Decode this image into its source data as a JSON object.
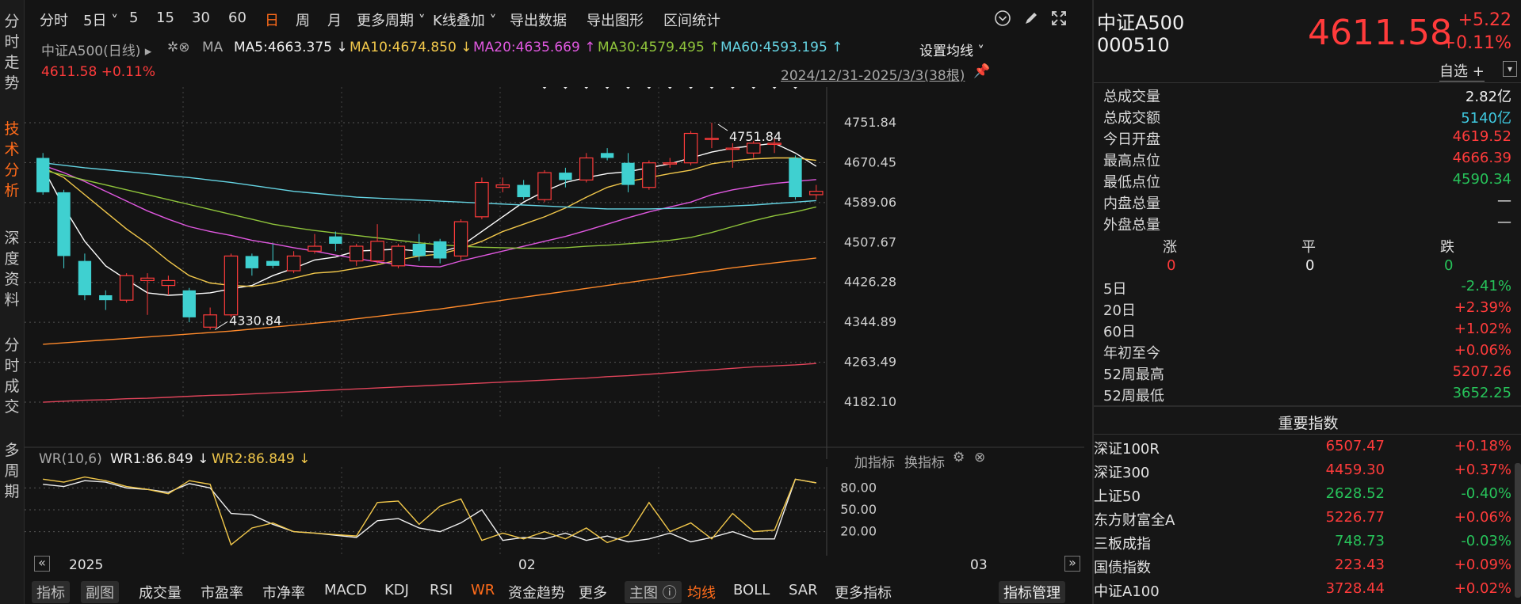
{
  "left_tabs": [
    "分时走势",
    "技术分析",
    "深度资料",
    "分时成交",
    "多周期"
  ],
  "active_tab_index": 1,
  "toolbar": {
    "items": [
      "分时",
      "5日",
      "5",
      "15",
      "30",
      "60",
      "日",
      "周",
      "月",
      "更多周期",
      "K线叠加",
      "导出数据",
      "导出图形",
      "区间统计"
    ],
    "active_item": "日",
    "icons": [
      "chevron-circle-icon",
      "pen-icon",
      "fullscreen-icon"
    ]
  },
  "ma_line": {
    "name": "中证A500",
    "period": "(日线)",
    "ma_label": "MA",
    "ma5": "MA5:4663.375",
    "ma10": "MA10:4674.850",
    "ma20": "MA20:4635.669",
    "ma30": "MA30:4579.495",
    "ma60": "MA60:4593.195",
    "arrow_down": "↓",
    "arrow_up": "↑",
    "settings": "设置均线",
    "price": "4611.58",
    "change_pct": "+0.11%",
    "date_range": "2024/12/31-2025/3/3(38根)"
  },
  "chart_data": {
    "type": "candlestick",
    "y_ticks": [
      "4751.84",
      "4670.45",
      "4589.06",
      "4507.67",
      "4426.28",
      "4344.89",
      "4263.49",
      "4182.10"
    ],
    "y_range": [
      4182.1,
      4751.84
    ],
    "x_labels": [
      "2025",
      "02",
      "03"
    ],
    "high_annotation": "4751.84",
    "low_annotation": "4330.84",
    "candles": [
      [
        4680,
        4610,
        4690,
        4605
      ],
      [
        4610,
        4480,
        4615,
        4455
      ],
      [
        4470,
        4400,
        4485,
        4390
      ],
      [
        4400,
        4390,
        4410,
        4370
      ],
      [
        4390,
        4440,
        4445,
        4385
      ],
      [
        4430,
        4435,
        4445,
        4360
      ],
      [
        4420,
        4430,
        4440,
        4400
      ],
      [
        4410,
        4355,
        4415,
        4345
      ],
      [
        4335,
        4360,
        4375,
        4330
      ],
      [
        4360,
        4480,
        4485,
        4355
      ],
      [
        4480,
        4455,
        4485,
        4440
      ],
      [
        4470,
        4460,
        4505,
        4455
      ],
      [
        4450,
        4480,
        4490,
        4445
      ],
      [
        4490,
        4500,
        4525,
        4485
      ],
      [
        4520,
        4505,
        4530,
        4490
      ],
      [
        4470,
        4500,
        4505,
        4460
      ],
      [
        4470,
        4510,
        4545,
        4465
      ],
      [
        4460,
        4500,
        4505,
        4455
      ],
      [
        4505,
        4480,
        4525,
        4470
      ],
      [
        4510,
        4475,
        4515,
        4465
      ],
      [
        4480,
        4550,
        4555,
        4470
      ],
      [
        4560,
        4630,
        4640,
        4555
      ],
      [
        4620,
        4625,
        4640,
        4610
      ],
      [
        4625,
        4600,
        4635,
        4595
      ],
      [
        4595,
        4650,
        4655,
        4590
      ],
      [
        4650,
        4635,
        4660,
        4620
      ],
      [
        4635,
        4680,
        4690,
        4630
      ],
      [
        4690,
        4680,
        4700,
        4675
      ],
      [
        4670,
        4625,
        4690,
        4610
      ],
      [
        4620,
        4670,
        4675,
        4615
      ],
      [
        4670,
        4670,
        4680,
        4660
      ],
      [
        4670,
        4730,
        4735,
        4665
      ],
      [
        4720,
        4720,
        4751.84,
        4700
      ],
      [
        4700,
        4700,
        4710,
        4660
      ],
      [
        4690,
        4710,
        4715,
        4680
      ],
      [
        4710,
        4710,
        4720,
        4690
      ],
      [
        4680,
        4600,
        4685,
        4595
      ],
      [
        4605,
        4612,
        4625,
        4595
      ]
    ],
    "ma_series": [
      {
        "name": "MA5",
        "color": "#ffffff",
        "values": [
          4660,
          4580,
          4510,
          4460,
          4432,
          4405,
          4400,
          4402,
          4405,
          4413,
          4420,
          4440,
          4455,
          4472,
          4478,
          4490,
          4492,
          4494,
          4490,
          4488,
          4500,
          4530,
          4560,
          4590,
          4612,
          4630,
          4640,
          4648,
          4652,
          4660,
          4668,
          4680,
          4692,
          4700,
          4705,
          4710,
          4690,
          4663
        ]
      },
      {
        "name": "MA10",
        "color": "#f2c84b",
        "values": [
          4660,
          4640,
          4605,
          4570,
          4535,
          4505,
          4470,
          4440,
          4425,
          4420,
          4418,
          4425,
          4435,
          4445,
          4448,
          4455,
          4462,
          4472,
          4480,
          4484,
          4495,
          4510,
          4530,
          4545,
          4560,
          4578,
          4600,
          4620,
          4632,
          4640,
          4648,
          4655,
          4668,
          4674,
          4678,
          4680,
          4680,
          4675
        ]
      },
      {
        "name": "MA20",
        "color": "#e058e0",
        "values": [
          4665,
          4650,
          4632,
          4612,
          4592,
          4572,
          4555,
          4540,
          4530,
          4522,
          4512,
          4505,
          4497,
          4490,
          4482,
          4475,
          4468,
          4463,
          4459,
          4458,
          4470,
          4480,
          4490,
          4500,
          4510,
          4520,
          4532,
          4545,
          4558,
          4570,
          4580,
          4590,
          4605,
          4615,
          4622,
          4628,
          4632,
          4636
        ]
      },
      {
        "name": "MA30",
        "color": "#8fc43b",
        "values": [
          4655,
          4645,
          4635,
          4625,
          4615,
          4605,
          4595,
          4585,
          4575,
          4565,
          4555,
          4545,
          4538,
          4532,
          4527,
          4522,
          4517,
          4512,
          4507,
          4503,
          4500,
          4498,
          4497,
          4496,
          4496,
          4497,
          4500,
          4502,
          4505,
          4508,
          4512,
          4518,
          4528,
          4540,
          4552,
          4562,
          4570,
          4580
        ]
      },
      {
        "name": "MA60",
        "color": "#65d4e3",
        "values": [
          4670,
          4665,
          4660,
          4656,
          4652,
          4648,
          4644,
          4640,
          4635,
          4630,
          4624,
          4618,
          4612,
          4608,
          4604,
          4600,
          4598,
          4596,
          4594,
          4592,
          4590,
          4588,
          4586,
          4584,
          4582,
          4580,
          4578,
          4576,
          4576,
          4576,
          4577,
          4578,
          4580,
          4582,
          4584,
          4587,
          4590,
          4593
        ]
      },
      {
        "name": "MA120",
        "color": "#ff8a2b",
        "values": [
          4300,
          4303,
          4306,
          4309,
          4312,
          4315,
          4318,
          4321,
          4324,
          4327,
          4331,
          4335,
          4339,
          4343,
          4347,
          4352,
          4357,
          4362,
          4367,
          4372,
          4378,
          4384,
          4390,
          4396,
          4402,
          4408,
          4414,
          4420,
          4426,
          4432,
          4438,
          4444,
          4450,
          4456,
          4461,
          4466,
          4471,
          4476
        ]
      },
      {
        "name": "MA250",
        "color": "#e0445a",
        "values": [
          4182,
          4184,
          4186,
          4187,
          4189,
          4190,
          4192,
          4194,
          4196,
          4197,
          4199,
          4201,
          4203,
          4205,
          4207,
          4209,
          4211,
          4213,
          4215,
          4217,
          4219,
          4221,
          4223,
          4225,
          4227,
          4229,
          4231,
          4234,
          4236,
          4239,
          4242,
          4245,
          4248,
          4251,
          4254,
          4256,
          4258,
          4261
        ]
      }
    ]
  },
  "wr": {
    "label": "WR(10,6)",
    "wr1": "WR1:86.849",
    "wr2": "WR2:86.849",
    "arrow": "↓",
    "add_indicator": "加指标",
    "change_indicator": "换指标",
    "y_ticks": [
      "80.00",
      "50.00",
      "20.00"
    ],
    "wr1_values": [
      85,
      82,
      90,
      88,
      80,
      78,
      74,
      86,
      80,
      45,
      43,
      30,
      20,
      18,
      15,
      12,
      35,
      38,
      25,
      20,
      32,
      50,
      8,
      12,
      10,
      18,
      8,
      14,
      6,
      10,
      18,
      6,
      12,
      20,
      10,
      10,
      92,
      87
    ],
    "wr2_values": [
      92,
      88,
      95,
      90,
      82,
      78,
      72,
      90,
      85,
      2,
      25,
      32,
      20,
      18,
      16,
      14,
      60,
      62,
      30,
      55,
      65,
      8,
      18,
      10,
      20,
      10,
      25,
      5,
      15,
      60,
      20,
      32,
      10,
      45,
      20,
      22,
      92,
      87
    ]
  },
  "bottom_bar": {
    "items": [
      "指标",
      "副图",
      "成交量",
      "市盈率",
      "市净率",
      "MACD",
      "KDJ",
      "RSI",
      "WR",
      "资金趋势",
      "更多",
      "主图",
      "均线",
      "BOLL",
      "SAR",
      "更多指标",
      "指标管理"
    ],
    "active_items": [
      "WR",
      "均线"
    ]
  },
  "quote": {
    "name": "中证A500",
    "code": "000510",
    "price": "4611.58",
    "change": "+5.22",
    "change_pct": "+0.11%",
    "watchlist": "自选 +",
    "stats": [
      {
        "label": "总成交量",
        "value": "2.82亿",
        "color": "white"
      },
      {
        "label": "总成交额",
        "value": "5140亿",
        "color": "cyan"
      },
      {
        "label": "今日开盘",
        "value": "4619.52",
        "color": "red"
      },
      {
        "label": "最高点位",
        "value": "4666.39",
        "color": "red"
      },
      {
        "label": "最低点位",
        "value": "4590.34",
        "color": "green"
      },
      {
        "label": "内盘总量",
        "value": "—",
        "color": "white"
      },
      {
        "label": "外盘总量",
        "value": "—",
        "color": "white"
      }
    ],
    "breadth": {
      "up_label": "涨",
      "flat_label": "平",
      "down_label": "跌",
      "up": "0",
      "flat": "0",
      "down": "0"
    },
    "periods": [
      {
        "label": "5日",
        "value": "-2.41%",
        "color": "green"
      },
      {
        "label": "20日",
        "value": "+2.39%",
        "color": "red"
      },
      {
        "label": "60日",
        "value": "+1.02%",
        "color": "red"
      },
      {
        "label": "年初至今",
        "value": "+0.06%",
        "color": "red"
      },
      {
        "label": "52周最高",
        "value": "5207.26",
        "color": "red"
      },
      {
        "label": "52周最低",
        "value": "3652.25",
        "color": "green"
      }
    ]
  },
  "indices": {
    "title": "重要指数",
    "rows": [
      {
        "name": "深证100R",
        "price": "6507.47",
        "chg": "+0.18%",
        "color": "red"
      },
      {
        "name": "深证300",
        "price": "4459.30",
        "chg": "+0.37%",
        "color": "red"
      },
      {
        "name": "上证50",
        "price": "2628.52",
        "chg": "-0.40%",
        "color": "green"
      },
      {
        "name": "东方财富全A",
        "price": "5226.77",
        "chg": "+0.06%",
        "color": "red"
      },
      {
        "name": "三板成指",
        "price": "748.73",
        "chg": "-0.03%",
        "color": "green"
      },
      {
        "name": "国债指数",
        "price": "223.43",
        "chg": "+0.09%",
        "color": "red"
      },
      {
        "name": "中证A100",
        "price": "3728.44",
        "chg": "+0.02%",
        "color": "red"
      }
    ]
  }
}
